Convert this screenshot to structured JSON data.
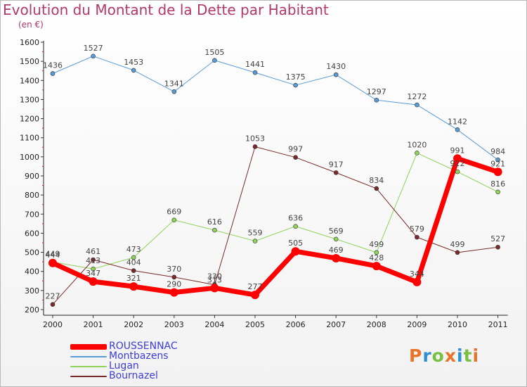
{
  "title": "Evolution du Montant de la Dette par Habitant",
  "unit": "(en €)",
  "logo": {
    "text": "Proxiti",
    "colors": [
      "#e8742a",
      "#2e8fd6",
      "#78c043",
      "#e8742a",
      "#2e8fd6",
      "#78c043",
      "#e8742a"
    ]
  },
  "chart_data": {
    "type": "line",
    "title": "Evolution du Montant de la Dette par Habitant",
    "subtitle": "(en €)",
    "xlabel": "",
    "ylabel": "",
    "ylim": [
      200,
      1600
    ],
    "yticks": [
      200,
      300,
      400,
      500,
      600,
      700,
      800,
      900,
      1000,
      1100,
      1200,
      1300,
      1400,
      1500,
      1600
    ],
    "x": [
      "2000",
      "2001",
      "2002",
      "2003",
      "2004",
      "2005",
      "2006",
      "2007",
      "2008",
      "2009",
      "2010",
      "2011"
    ],
    "grid": false,
    "legend_position": "bottom-left",
    "series": [
      {
        "name": "Montbazens",
        "color": "#5b9bd5",
        "width": 1,
        "values": [
          1436,
          1527,
          1453,
          1341,
          1505,
          1441,
          1375,
          1430,
          1297,
          1272,
          1142,
          984
        ]
      },
      {
        "name": "Lugan",
        "color": "#8fd35a",
        "width": 1,
        "values": [
          449,
          413,
          473,
          669,
          616,
          559,
          636,
          569,
          499,
          1020,
          922,
          816
        ]
      },
      {
        "name": "Bournazel",
        "color": "#7a2a2a",
        "width": 1,
        "values": [
          227,
          461,
          404,
          370,
          330,
          1053,
          997,
          917,
          834,
          579,
          499,
          527
        ]
      },
      {
        "name": "ROUSSENNAC",
        "color": "#ff0000",
        "width": 7,
        "values": [
          444,
          347,
          321,
          290,
          313,
          277,
          505,
          469,
          428,
          344,
          991,
          921
        ]
      }
    ]
  }
}
